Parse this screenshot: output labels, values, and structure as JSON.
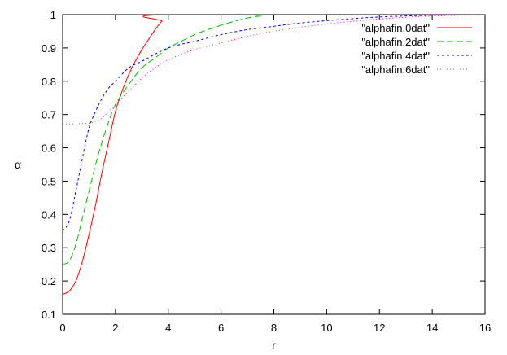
{
  "chart_data": {
    "type": "line",
    "title": "",
    "xlabel": "r",
    "ylabel": "α",
    "xlim": [
      0,
      16
    ],
    "ylim": [
      0.1,
      1
    ],
    "xticks": [
      0,
      2,
      4,
      6,
      8,
      10,
      12,
      14,
      16
    ],
    "yticks": [
      0.1,
      0.2,
      0.3,
      0.4,
      0.5,
      0.6,
      0.7,
      0.8,
      0.9,
      1
    ],
    "xtick_labels": [
      "0",
      "2",
      "4",
      "6",
      "8",
      "10",
      "12",
      "14",
      "16"
    ],
    "ytick_labels": [
      "0.1",
      "0.2",
      "0.3",
      "0.4",
      "0.5",
      "0.6",
      "0.7",
      "0.8",
      "0.9",
      "1"
    ],
    "grid": false,
    "legend_position": "top-right",
    "series": [
      {
        "name": "\"alphafin.0dat\"",
        "color": "#ff0000",
        "dash": "solid",
        "x": [
          0,
          0.25,
          0.5,
          0.75,
          1.0,
          1.25,
          1.5,
          1.75,
          2.0,
          2.25,
          2.5,
          2.75,
          3.0,
          3.25,
          3.5,
          3.75,
          4.0,
          16
        ],
        "y": [
          0.16,
          0.17,
          0.2,
          0.26,
          0.34,
          0.43,
          0.53,
          0.62,
          0.71,
          0.77,
          0.82,
          0.86,
          0.895,
          0.925,
          0.955,
          0.98,
          1.0,
          1.0
        ]
      },
      {
        "name": "\"alphafin.2dat\"",
        "color": "#00c000",
        "dash": "8,4",
        "x": [
          0,
          0.25,
          0.5,
          0.75,
          1.0,
          1.25,
          1.5,
          1.75,
          2.0,
          2.5,
          3.0,
          3.5,
          4.0,
          4.5,
          5.0,
          5.5,
          6.0,
          6.5,
          7.0,
          7.5,
          8.0,
          16
        ],
        "y": [
          0.25,
          0.26,
          0.31,
          0.39,
          0.47,
          0.55,
          0.62,
          0.68,
          0.73,
          0.79,
          0.84,
          0.87,
          0.9,
          0.92,
          0.94,
          0.955,
          0.968,
          0.98,
          0.99,
          0.996,
          1.0,
          1.0
        ]
      },
      {
        "name": "\"alphafin.4dat\"",
        "color": "#0000ff",
        "dash": "3,3",
        "x": [
          0,
          0.25,
          0.5,
          0.75,
          1.0,
          1.25,
          1.5,
          1.75,
          2.0,
          2.5,
          3.0,
          4.0,
          5.0,
          6.0,
          7.0,
          8.0,
          9.0,
          10.0,
          11.0,
          12.0,
          13.0,
          14.0,
          16.0
        ],
        "y": [
          0.35,
          0.38,
          0.47,
          0.57,
          0.66,
          0.71,
          0.75,
          0.78,
          0.8,
          0.84,
          0.86,
          0.9,
          0.92,
          0.94,
          0.955,
          0.965,
          0.975,
          0.982,
          0.988,
          0.993,
          0.996,
          0.998,
          1.0
        ]
      },
      {
        "name": "\"alphafin.6dat\"",
        "color": "#ff00ff",
        "dash": "1,3",
        "x": [
          0,
          0.5,
          1.0,
          1.25,
          1.5,
          2.0,
          2.5,
          3.0,
          3.5,
          4.0,
          5.0,
          6.0,
          7.0,
          8.0,
          9.0,
          10.0,
          11.0,
          12.0,
          13.0,
          14.0,
          16.0
        ],
        "y": [
          0.672,
          0.672,
          0.674,
          0.68,
          0.69,
          0.73,
          0.77,
          0.81,
          0.84,
          0.865,
          0.895,
          0.915,
          0.935,
          0.95,
          0.962,
          0.972,
          0.98,
          0.987,
          0.992,
          0.996,
          1.0
        ]
      }
    ]
  }
}
